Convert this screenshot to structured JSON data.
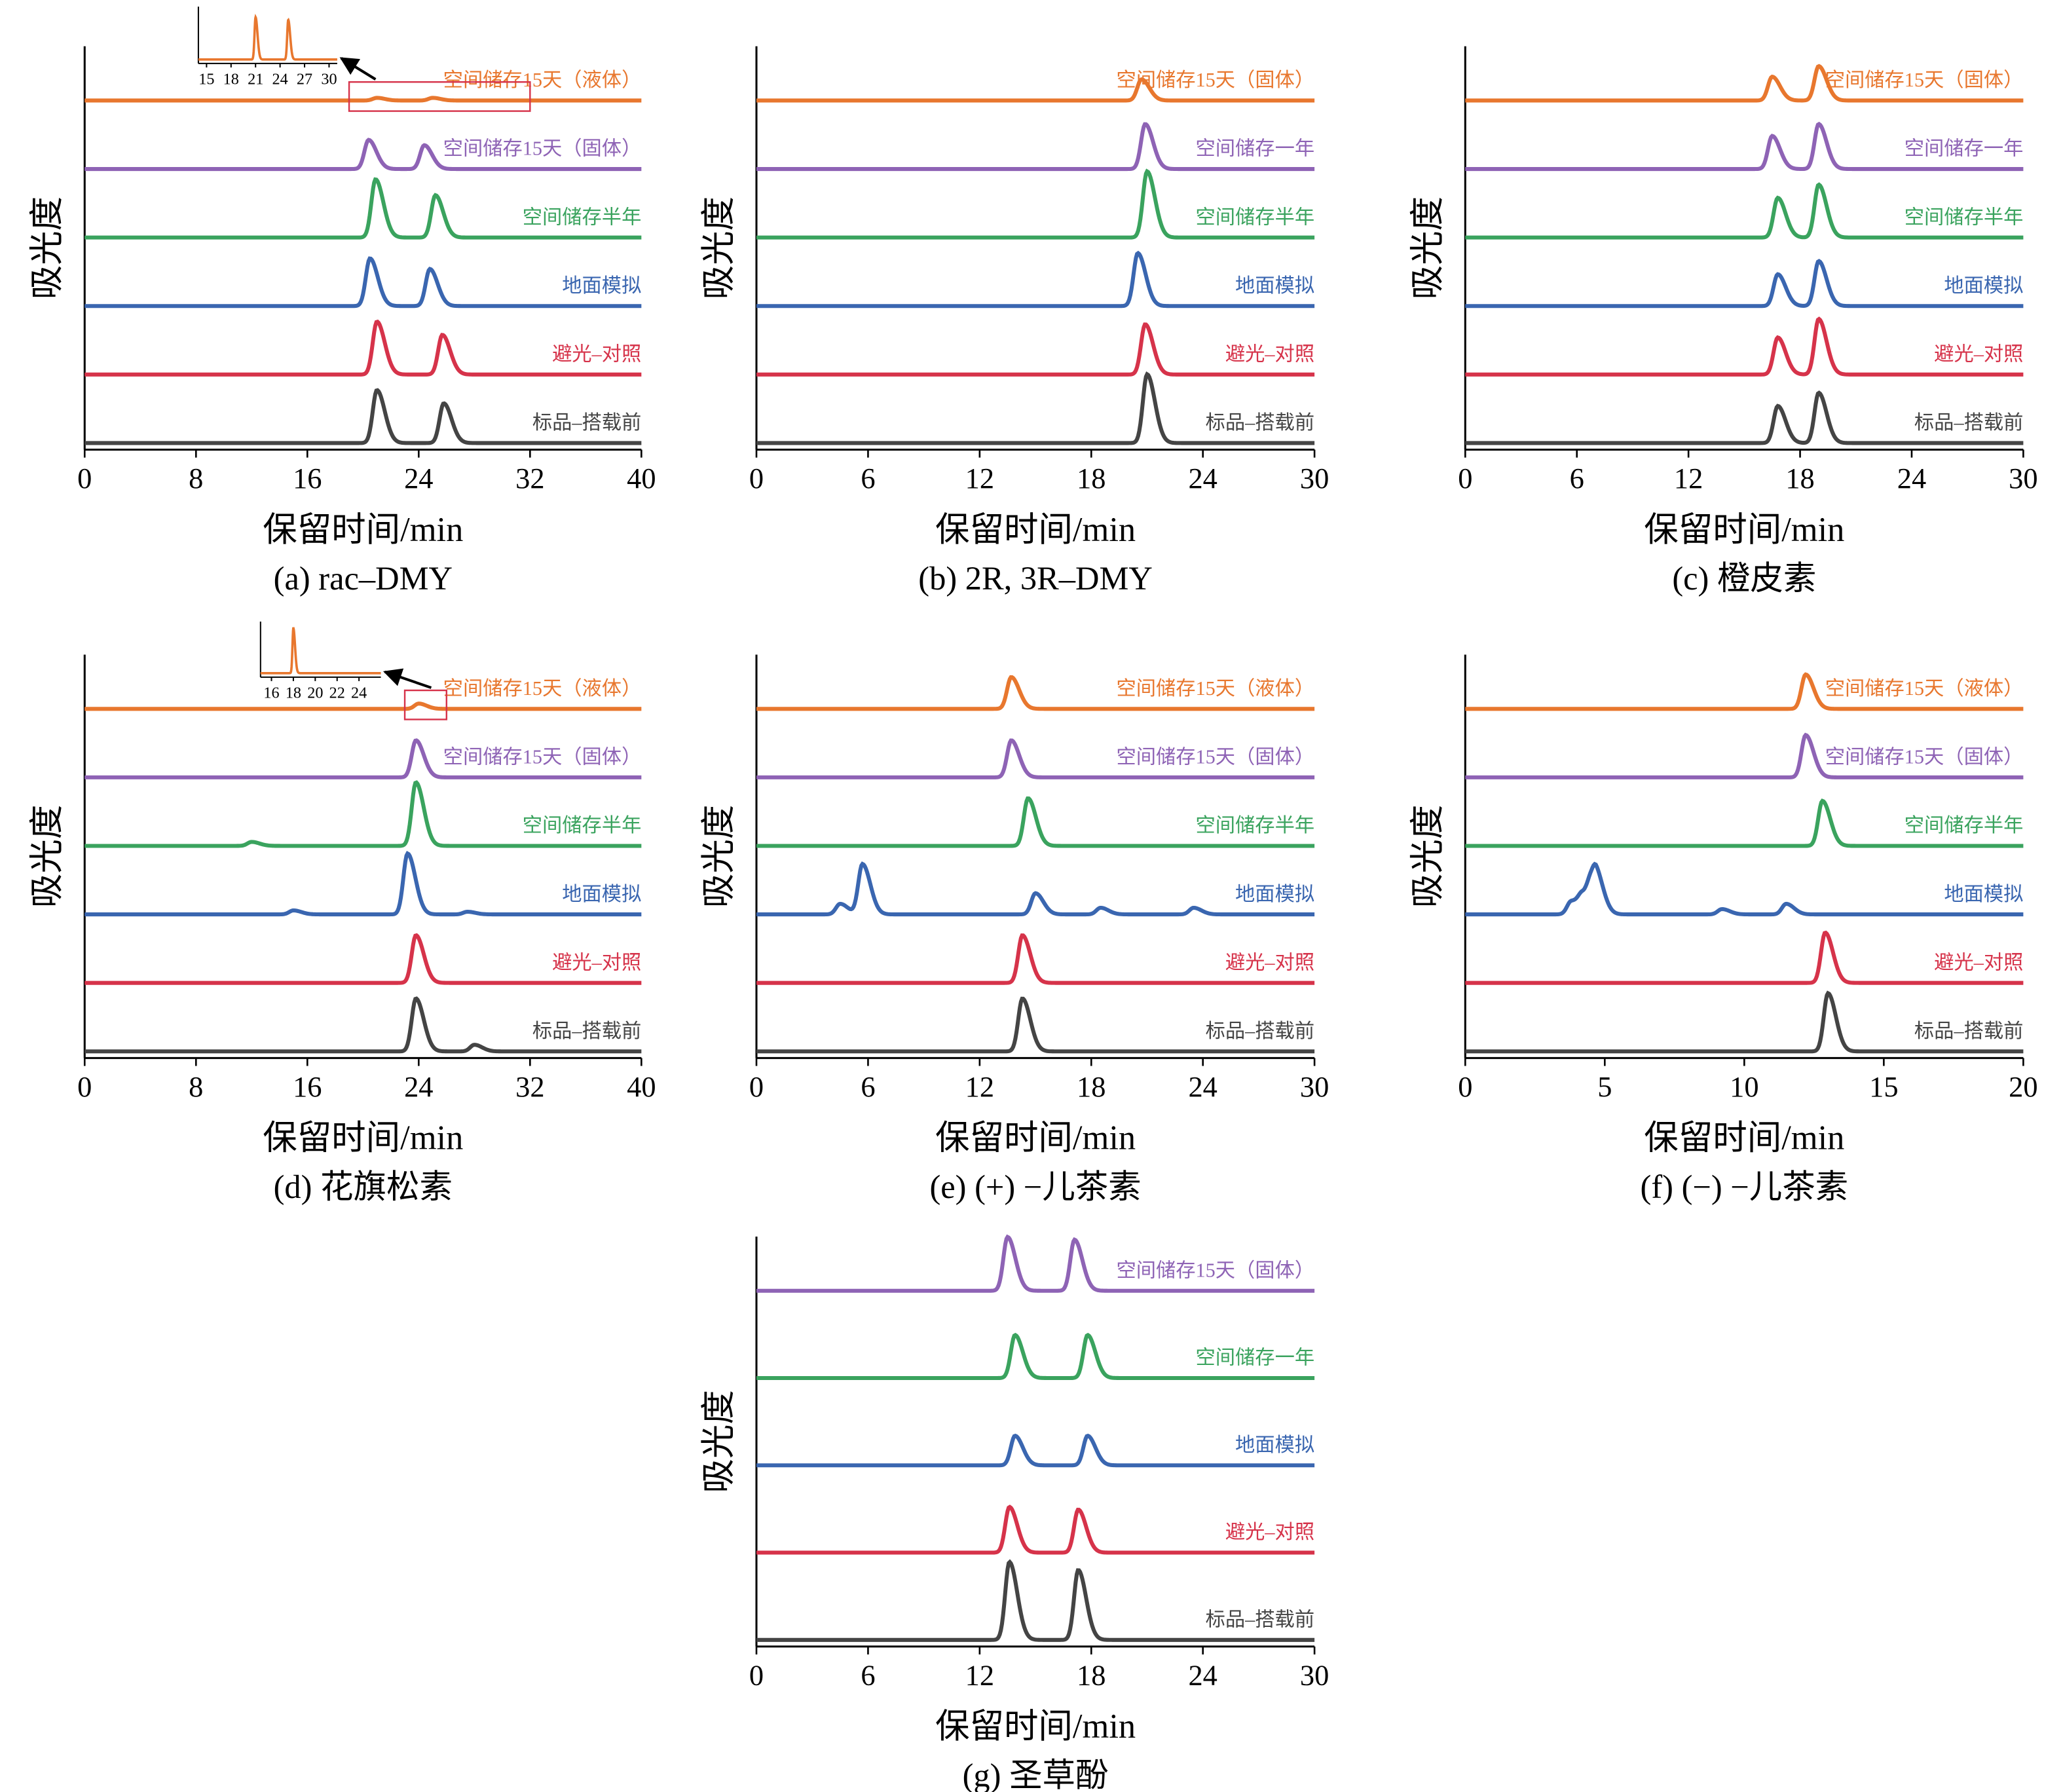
{
  "chart_data": [
    {
      "type": "line",
      "caption": "(a) rac–DMY",
      "x_label": "保留时间/min",
      "y_label": "吸光度",
      "xlim": [
        0,
        40
      ],
      "xticks": [
        0,
        8,
        16,
        24,
        32,
        40
      ],
      "series": [
        {
          "name": "空间储存15天（液体）",
          "color": "#e8772e",
          "peak_times": [
            21,
            25
          ],
          "peak_heights": [
            2,
            2
          ]
        },
        {
          "name": "空间储存15天（固体）",
          "color": "#8e63b5",
          "peak_times": [
            20.4,
            24.4
          ],
          "peak_heights": [
            22,
            18
          ]
        },
        {
          "name": "空间储存半年",
          "color": "#3aa35e",
          "peak_times": [
            20.9,
            25.2
          ],
          "peak_heights": [
            44,
            32
          ]
        },
        {
          "name": "地面模拟",
          "color": "#3a66b0",
          "peak_times": [
            20.5,
            24.8
          ],
          "peak_heights": [
            36,
            28
          ]
        },
        {
          "name": "避光–对照",
          "color": "#d6334a",
          "peak_times": [
            21,
            25.7
          ],
          "peak_heights": [
            40,
            30
          ]
        },
        {
          "name": "标品–搭载前",
          "color": "#444444",
          "peak_times": [
            21,
            25.8
          ],
          "peak_heights": [
            40,
            30
          ]
        }
      ],
      "inset": {
        "xlim": [
          14,
          31
        ],
        "xticks": [
          15,
          18,
          21,
          24,
          27,
          30
        ],
        "peak_times": [
          21,
          25
        ],
        "peak_heights": [
          32,
          30
        ],
        "zoom_range": [
          19,
          32
        ]
      }
    },
    {
      "type": "line",
      "caption": "(b) 2R, 3R–DMY",
      "x_label": "保留时间/min",
      "y_label": "吸光度",
      "xlim": [
        0,
        30
      ],
      "xticks": [
        0,
        6,
        12,
        18,
        24,
        30
      ],
      "series": [
        {
          "name": "空间储存15天（固体）",
          "color": "#e8772e",
          "peak_times": [
            20.7
          ],
          "peak_heights": [
            16
          ]
        },
        {
          "name": "空间储存一年",
          "color": "#8e63b5",
          "peak_times": [
            20.9
          ],
          "peak_heights": [
            34
          ]
        },
        {
          "name": "空间储存半年",
          "color": "#3aa35e",
          "peak_times": [
            21
          ],
          "peak_heights": [
            50
          ]
        },
        {
          "name": "地面模拟",
          "color": "#3a66b0",
          "peak_times": [
            20.5
          ],
          "peak_heights": [
            40
          ]
        },
        {
          "name": "避光–对照",
          "color": "#d6334a",
          "peak_times": [
            20.9
          ],
          "peak_heights": [
            38
          ]
        },
        {
          "name": "标品–搭载前",
          "color": "#444444",
          "peak_times": [
            21
          ],
          "peak_heights": [
            52
          ]
        }
      ]
    },
    {
      "type": "line",
      "caption": "(c) 橙皮素",
      "x_label": "保留时间/min",
      "y_label": "吸光度",
      "xlim": [
        0,
        30
      ],
      "xticks": [
        0,
        6,
        12,
        18,
        24,
        30
      ],
      "series": [
        {
          "name": "空间储存15天（固体）",
          "color": "#e8772e",
          "peak_times": [
            16.5,
            19
          ],
          "peak_heights": [
            18,
            26
          ]
        },
        {
          "name": "空间储存一年",
          "color": "#8e63b5",
          "peak_times": [
            16.5,
            19
          ],
          "peak_heights": [
            25,
            34
          ]
        },
        {
          "name": "空间储存半年",
          "color": "#3aa35e",
          "peak_times": [
            16.8,
            19
          ],
          "peak_heights": [
            30,
            40
          ]
        },
        {
          "name": "地面模拟",
          "color": "#3a66b0",
          "peak_times": [
            16.8,
            19
          ],
          "peak_heights": [
            24,
            34
          ]
        },
        {
          "name": "避光–对照",
          "color": "#d6334a",
          "peak_times": [
            16.8,
            19
          ],
          "peak_heights": [
            28,
            42
          ]
        },
        {
          "name": "标品–搭载前",
          "color": "#444444",
          "peak_times": [
            16.8,
            19
          ],
          "peak_heights": [
            28,
            38
          ]
        }
      ]
    },
    {
      "type": "line",
      "caption": "(d) 花旗松素",
      "x_label": "保留时间/min",
      "y_label": "吸光度",
      "xlim": [
        0,
        40
      ],
      "xticks": [
        0,
        8,
        16,
        24,
        32,
        40
      ],
      "series": [
        {
          "name": "空间储存15天（液体）",
          "color": "#e8772e",
          "peak_times": [
            24
          ],
          "peak_heights": [
            4
          ]
        },
        {
          "name": "空间储存15天（固体）",
          "color": "#8e63b5",
          "peak_times": [
            23.8
          ],
          "peak_heights": [
            28
          ]
        },
        {
          "name": "空间储存半年",
          "color": "#3aa35e",
          "peak_times": [
            12,
            23.8
          ],
          "peak_heights": [
            3,
            48
          ]
        },
        {
          "name": "地面模拟",
          "color": "#3a66b0",
          "peak_times": [
            15,
            23.2,
            27.5
          ],
          "peak_heights": [
            3,
            46,
            2
          ]
        },
        {
          "name": "避光–对照",
          "color": "#d6334a",
          "peak_times": [
            23.8
          ],
          "peak_heights": [
            36
          ]
        },
        {
          "name": "标品–搭载前",
          "color": "#444444",
          "peak_times": [
            23.8,
            28
          ],
          "peak_heights": [
            40,
            5
          ]
        }
      ],
      "inset": {
        "xlim": [
          15,
          26
        ],
        "xticks": [
          16,
          18,
          20,
          22,
          24
        ],
        "peak_times": [
          18
        ],
        "peak_heights": [
          34
        ],
        "zoom_range": [
          23,
          26
        ]
      }
    },
    {
      "type": "line",
      "caption": "(e) (+) −儿茶素",
      "x_label": "保留时间/min",
      "y_label": "吸光度",
      "xlim": [
        0,
        30
      ],
      "xticks": [
        0,
        6,
        12,
        18,
        24,
        30
      ],
      "series": [
        {
          "name": "空间储存15天（液体）",
          "color": "#e8772e",
          "peak_times": [
            13.7
          ],
          "peak_heights": [
            24
          ]
        },
        {
          "name": "空间储存15天（固体）",
          "color": "#8e63b5",
          "peak_times": [
            13.7
          ],
          "peak_heights": [
            28
          ]
        },
        {
          "name": "空间储存半年",
          "color": "#3aa35e",
          "peak_times": [
            14.6
          ],
          "peak_heights": [
            36
          ]
        },
        {
          "name": "地面模拟",
          "color": "#3a66b0",
          "peak_times": [
            4.5,
            5.7,
            15,
            18.5,
            23.5
          ],
          "peak_heights": [
            8,
            38,
            16,
            5,
            5
          ]
        },
        {
          "name": "避光–对照",
          "color": "#d6334a",
          "peak_times": [
            14.3
          ],
          "peak_heights": [
            36
          ]
        },
        {
          "name": "标品–搭载前",
          "color": "#444444",
          "peak_times": [
            14.3
          ],
          "peak_heights": [
            40
          ]
        }
      ]
    },
    {
      "type": "line",
      "caption": "(f) (−) −儿茶素",
      "x_label": "保留时间/min",
      "y_label": "吸光度",
      "xlim": [
        0,
        20
      ],
      "xticks": [
        0,
        5,
        10,
        15,
        20
      ],
      "series": [
        {
          "name": "空间储存15天（液体）",
          "color": "#e8772e",
          "peak_times": [
            12.2
          ],
          "peak_heights": [
            26
          ]
        },
        {
          "name": "空间储存15天（固体）",
          "color": "#8e63b5",
          "peak_times": [
            12.2
          ],
          "peak_heights": [
            32
          ]
        },
        {
          "name": "空间储存半年",
          "color": "#3aa35e",
          "peak_times": [
            12.8
          ],
          "peak_heights": [
            34
          ]
        },
        {
          "name": "地面模拟",
          "color": "#3a66b0",
          "peak_times": [
            3.8,
            4.2,
            4.5,
            4.7,
            9.2,
            11.5
          ],
          "peak_heights": [
            10,
            12,
            16,
            22,
            4,
            8
          ]
        },
        {
          "name": "避光–对照",
          "color": "#d6334a",
          "peak_times": [
            12.9
          ],
          "peak_heights": [
            38
          ]
        },
        {
          "name": "标品–搭载前",
          "color": "#444444",
          "peak_times": [
            13
          ],
          "peak_heights": [
            44
          ]
        }
      ]
    },
    {
      "type": "line",
      "caption": "(g) 圣草酚",
      "x_label": "保留时间/min",
      "y_label": "吸光度",
      "xlim": [
        0,
        30
      ],
      "xticks": [
        0,
        6,
        12,
        18,
        24,
        30
      ],
      "series": [
        {
          "name": "空间储存15天（固体）",
          "color": "#8e63b5",
          "peak_times": [
            13.5,
            17.1
          ],
          "peak_heights": [
            40,
            38
          ]
        },
        {
          "name": "空间储存一年",
          "color": "#3aa35e",
          "peak_times": [
            13.9,
            17.8
          ],
          "peak_heights": [
            32,
            32
          ]
        },
        {
          "name": "地面模拟",
          "color": "#3a66b0",
          "peak_times": [
            13.9,
            17.8
          ],
          "peak_heights": [
            22,
            22
          ]
        },
        {
          "name": "避光–对照",
          "color": "#d6334a",
          "peak_times": [
            13.6,
            17.3
          ],
          "peak_heights": [
            34,
            32
          ]
        },
        {
          "name": "标品–搭载前",
          "color": "#444444",
          "peak_times": [
            13.6,
            17.3
          ],
          "peak_heights": [
            58,
            52
          ]
        }
      ]
    }
  ]
}
